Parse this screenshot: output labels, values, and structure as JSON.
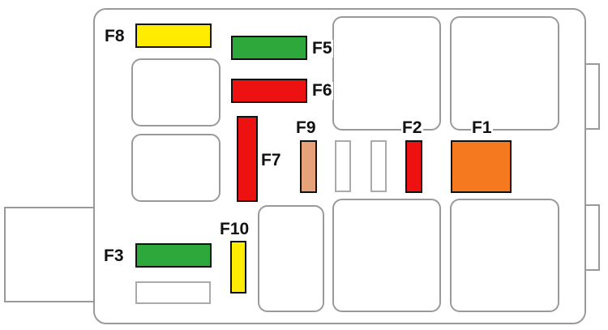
{
  "fuses": [
    {
      "id": "F1",
      "color": "#f57a1f"
    },
    {
      "id": "F2",
      "color": "#ee1111"
    },
    {
      "id": "F3",
      "color": "#2ea83a"
    },
    {
      "id": "F5",
      "color": "#2ea83a"
    },
    {
      "id": "F6",
      "color": "#ee1111"
    },
    {
      "id": "F7",
      "color": "#ee1111"
    },
    {
      "id": "F8",
      "color": "#ffec00"
    },
    {
      "id": "F9",
      "color": "#e8a27a"
    },
    {
      "id": "F10",
      "color": "#ffec00"
    }
  ]
}
